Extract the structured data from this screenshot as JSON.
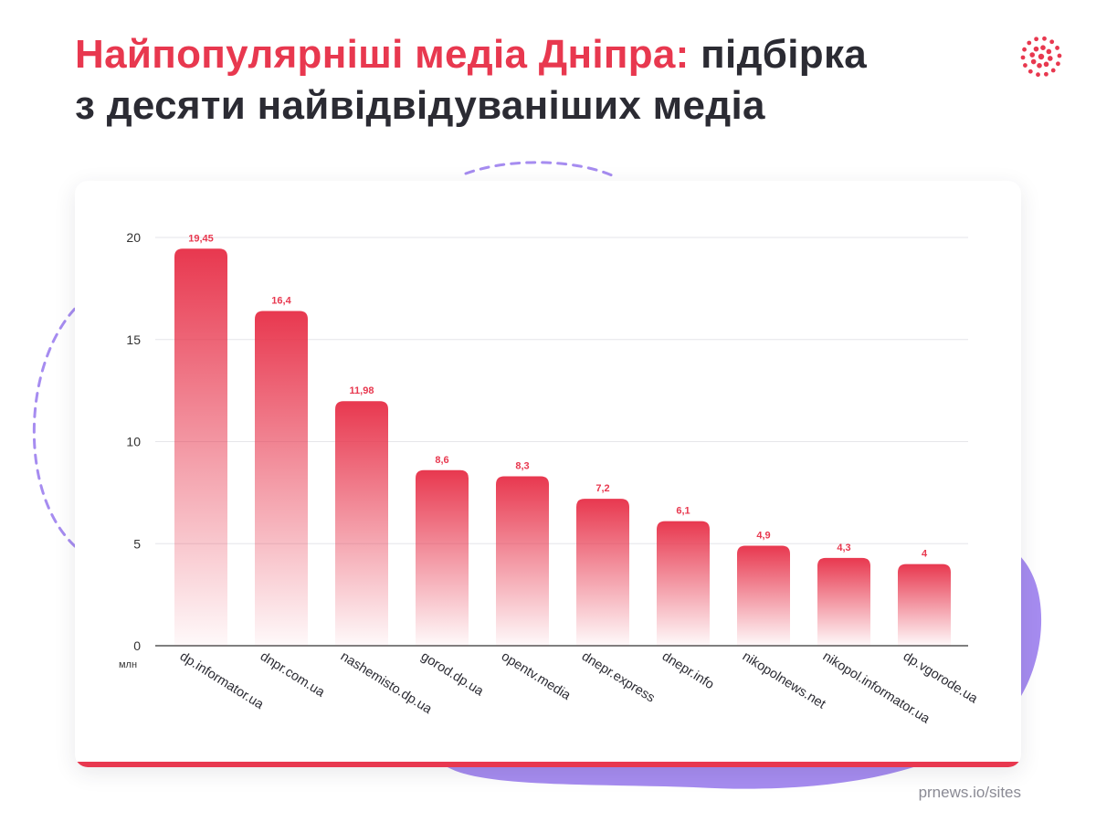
{
  "title": {
    "highlight": "Найпопулярніші медіа Дніпра:",
    "line1_rest": "підбірка",
    "line2": "з десяти найвідвідуваніших медіа"
  },
  "source": "prnews.io/sites",
  "colors": {
    "accent": "#e8384f",
    "decor_purple": "#a68cf0",
    "text_dark": "#2b2b33"
  },
  "chart_data": {
    "type": "bar",
    "categories": [
      "dp.informator.ua",
      "dnpr.com.ua",
      "nashemisto.dp.ua",
      "gorod.dp.ua",
      "opentv.media",
      "dnepr.express",
      "dnepr.info",
      "nikopolnews.net",
      "nikopol.informator.ua",
      "dp.vgorode.ua"
    ],
    "values": [
      19.45,
      16.4,
      11.98,
      8.6,
      8.3,
      7.2,
      6.1,
      4.9,
      4.3,
      4
    ],
    "value_labels": [
      "19,45",
      "16,4",
      "11,98",
      "8,6",
      "8,3",
      "7,2",
      "6,1",
      "4,9",
      "4,3",
      "4"
    ],
    "yticks": [
      0,
      5,
      10,
      15,
      20
    ],
    "ylim": [
      0,
      20
    ],
    "unit_label": "млн",
    "grid": true,
    "legend": "none"
  }
}
